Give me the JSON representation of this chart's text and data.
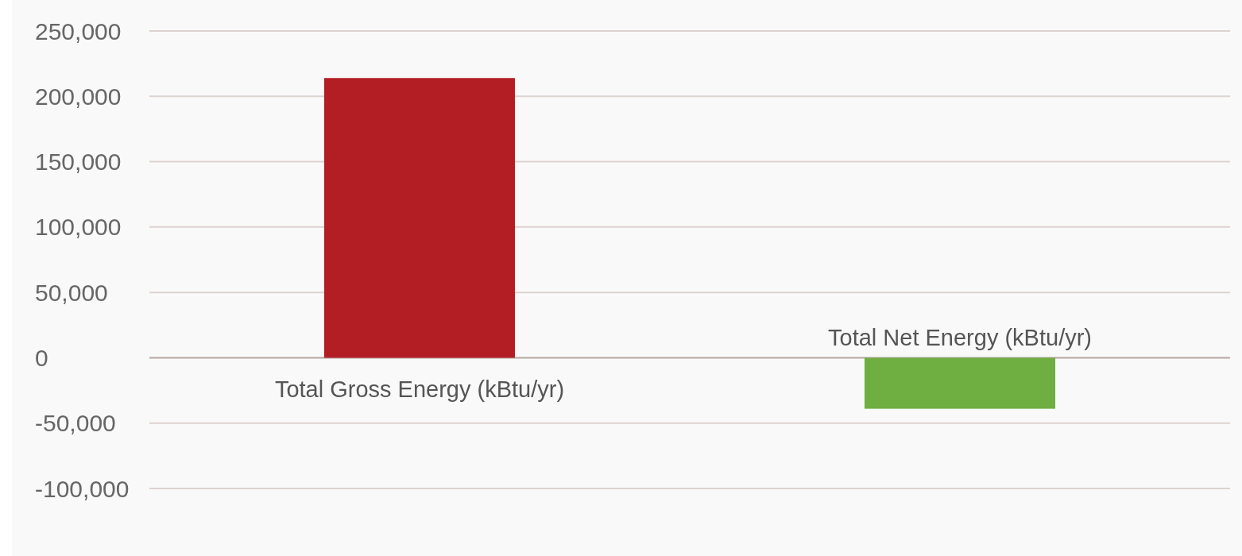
{
  "chart_data": {
    "type": "bar",
    "categories": [
      "Total Gross Energy (kBtu/yr)",
      "Total Net Energy (kBtu/yr)"
    ],
    "values": [
      214000,
      -39000
    ],
    "colors": [
      "#b31e25",
      "#6fae40"
    ],
    "ylim": [
      -100000,
      250000
    ],
    "yticks": [
      {
        "value": -100000,
        "label": "-100,000"
      },
      {
        "value": -50000,
        "label": "-50,000"
      },
      0,
      {
        "value": 50000,
        "label": "50,000"
      },
      {
        "value": 100000,
        "label": "100,000"
      },
      {
        "value": 150000,
        "label": "150,000"
      },
      {
        "value": 200000,
        "label": "200,000"
      },
      {
        "value": 250000,
        "label": "250,000"
      }
    ],
    "grid": "y"
  }
}
